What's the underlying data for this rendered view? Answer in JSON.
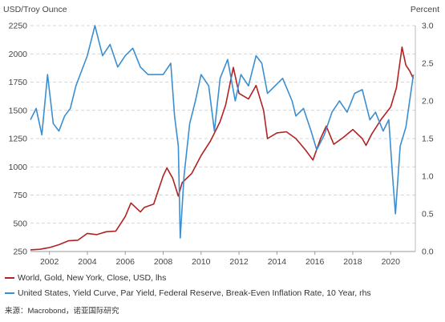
{
  "chart_data": {
    "type": "line",
    "left_axis_title": "USD/Troy Ounce",
    "right_axis_title": "Percent",
    "xlim": [
      2001.0,
      2021.3
    ],
    "x_ticks": [
      2002,
      2004,
      2006,
      2008,
      2010,
      2012,
      2014,
      2016,
      2018,
      2020
    ],
    "y_left": {
      "ylim": [
        250,
        2250
      ],
      "ticks": [
        250,
        500,
        750,
        1000,
        1250,
        1500,
        1750,
        2000,
        2250
      ]
    },
    "y_right": {
      "ylim": [
        0.0,
        3.0
      ],
      "ticks": [
        "0.0",
        "0.5",
        "1.0",
        "1.5",
        "2.0",
        "2.5",
        "3.0"
      ]
    },
    "grid": "horizontal dashed",
    "series": [
      {
        "name": "World, Gold, New York, Close, USD, lhs",
        "axis": "left",
        "color": "#b22222",
        "points": [
          [
            2001.0,
            265
          ],
          [
            2001.5,
            270
          ],
          [
            2002.0,
            285
          ],
          [
            2002.5,
            310
          ],
          [
            2003.0,
            345
          ],
          [
            2003.5,
            350
          ],
          [
            2004.0,
            410
          ],
          [
            2004.5,
            400
          ],
          [
            2005.0,
            425
          ],
          [
            2005.5,
            430
          ],
          [
            2006.0,
            560
          ],
          [
            2006.3,
            680
          ],
          [
            2006.8,
            600
          ],
          [
            2007.0,
            640
          ],
          [
            2007.5,
            670
          ],
          [
            2008.0,
            920
          ],
          [
            2008.2,
            990
          ],
          [
            2008.5,
            900
          ],
          [
            2008.8,
            740
          ],
          [
            2009.0,
            860
          ],
          [
            2009.5,
            940
          ],
          [
            2010.0,
            1100
          ],
          [
            2010.5,
            1230
          ],
          [
            2011.0,
            1400
          ],
          [
            2011.3,
            1550
          ],
          [
            2011.7,
            1880
          ],
          [
            2012.0,
            1650
          ],
          [
            2012.5,
            1600
          ],
          [
            2012.9,
            1720
          ],
          [
            2013.3,
            1500
          ],
          [
            2013.5,
            1250
          ],
          [
            2014.0,
            1300
          ],
          [
            2014.5,
            1310
          ],
          [
            2015.0,
            1250
          ],
          [
            2015.5,
            1150
          ],
          [
            2015.9,
            1060
          ],
          [
            2016.3,
            1250
          ],
          [
            2016.6,
            1360
          ],
          [
            2017.0,
            1200
          ],
          [
            2017.5,
            1260
          ],
          [
            2018.0,
            1330
          ],
          [
            2018.5,
            1250
          ],
          [
            2018.7,
            1190
          ],
          [
            2019.0,
            1290
          ],
          [
            2019.5,
            1420
          ],
          [
            2020.0,
            1530
          ],
          [
            2020.3,
            1700
          ],
          [
            2020.6,
            2060
          ],
          [
            2020.8,
            1900
          ],
          [
            2021.0,
            1850
          ],
          [
            2021.2,
            1780
          ]
        ]
      },
      {
        "name": "United States, Yield Curve, Par Yield, Federal Reserve, Break-Even Inflation Rate, 10 Year, rhs",
        "axis": "right",
        "color": "#3b8fd1",
        "points": [
          [
            2001.0,
            1.75
          ],
          [
            2001.3,
            1.9
          ],
          [
            2001.6,
            1.55
          ],
          [
            2001.9,
            2.35
          ],
          [
            2002.2,
            1.7
          ],
          [
            2002.5,
            1.6
          ],
          [
            2002.8,
            1.8
          ],
          [
            2003.1,
            1.9
          ],
          [
            2003.4,
            2.2
          ],
          [
            2003.7,
            2.4
          ],
          [
            2004.0,
            2.6
          ],
          [
            2004.4,
            3.0
          ],
          [
            2004.8,
            2.6
          ],
          [
            2005.2,
            2.75
          ],
          [
            2005.6,
            2.45
          ],
          [
            2006.0,
            2.6
          ],
          [
            2006.4,
            2.7
          ],
          [
            2006.8,
            2.45
          ],
          [
            2007.2,
            2.35
          ],
          [
            2007.6,
            2.35
          ],
          [
            2008.0,
            2.35
          ],
          [
            2008.4,
            2.5
          ],
          [
            2008.6,
            1.8
          ],
          [
            2008.8,
            1.4
          ],
          [
            2008.9,
            0.18
          ],
          [
            2009.1,
            1.0
          ],
          [
            2009.4,
            1.7
          ],
          [
            2009.7,
            2.0
          ],
          [
            2010.0,
            2.35
          ],
          [
            2010.4,
            2.2
          ],
          [
            2010.7,
            1.6
          ],
          [
            2011.0,
            2.3
          ],
          [
            2011.4,
            2.55
          ],
          [
            2011.8,
            2.0
          ],
          [
            2012.1,
            2.35
          ],
          [
            2012.5,
            2.2
          ],
          [
            2012.9,
            2.6
          ],
          [
            2013.2,
            2.5
          ],
          [
            2013.5,
            2.1
          ],
          [
            2013.9,
            2.2
          ],
          [
            2014.3,
            2.3
          ],
          [
            2014.8,
            2.0
          ],
          [
            2015.0,
            1.8
          ],
          [
            2015.4,
            1.9
          ],
          [
            2015.8,
            1.6
          ],
          [
            2016.1,
            1.35
          ],
          [
            2016.5,
            1.55
          ],
          [
            2016.9,
            1.85
          ],
          [
            2017.3,
            2.0
          ],
          [
            2017.7,
            1.85
          ],
          [
            2018.1,
            2.1
          ],
          [
            2018.5,
            2.15
          ],
          [
            2018.9,
            1.75
          ],
          [
            2019.2,
            1.85
          ],
          [
            2019.6,
            1.6
          ],
          [
            2019.9,
            1.75
          ],
          [
            2020.1,
            1.0
          ],
          [
            2020.25,
            0.5
          ],
          [
            2020.5,
            1.4
          ],
          [
            2020.8,
            1.65
          ],
          [
            2021.0,
            2.0
          ],
          [
            2021.2,
            2.35
          ]
        ]
      }
    ]
  },
  "legend": [
    {
      "label": "World, Gold, New York, Close, USD, lhs",
      "color": "#b22222"
    },
    {
      "label": "United States, Yield Curve, Par Yield, Federal Reserve, Break-Even Inflation Rate, 10 Year, rhs",
      "color": "#3b8fd1"
    }
  ],
  "source": "来源：Macrobond，诺亚国际研究"
}
